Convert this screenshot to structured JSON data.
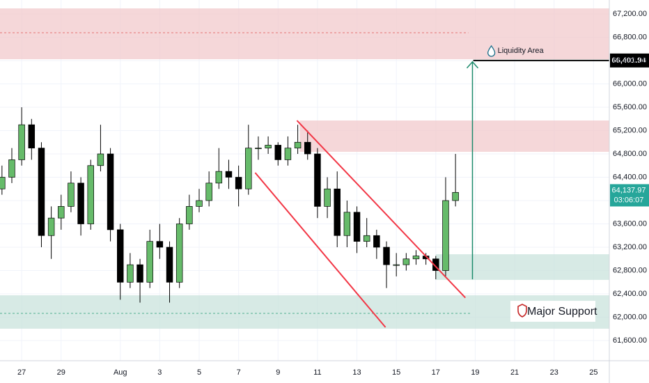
{
  "chart_data": {
    "type": "candlestick",
    "x": [
      26,
      26.5,
      27,
      27.5,
      28,
      28.5,
      29,
      29.5,
      30,
      30.5,
      31,
      31.5,
      32,
      32.5,
      33,
      33.5,
      34,
      34.5,
      35,
      35.5,
      36,
      36.5,
      37,
      37.5,
      38,
      38.5,
      39,
      39.5,
      40,
      40.5,
      41,
      41.5,
      42,
      42.5,
      43,
      43.5,
      44,
      44.5,
      45,
      45.5,
      46,
      46.5,
      47,
      47.5,
      48,
      48.5,
      49
    ],
    "open": [
      64200,
      64400,
      64700,
      65300,
      64900,
      63400,
      63700,
      63900,
      64300,
      63600,
      64600,
      64800,
      63500,
      62600,
      62900,
      62600,
      63300,
      63200,
      62600,
      63600,
      63900,
      64000,
      64300,
      64500,
      64400,
      64200,
      64900,
      64900,
      64950,
      64700,
      64900,
      65000,
      64800,
      63900,
      64200,
      63400,
      63800,
      63300,
      63400,
      63200,
      62900,
      62900,
      63000,
      63050,
      63000,
      62800,
      64000
    ],
    "high": [
      64600,
      64900,
      65600,
      65400,
      65000,
      63900,
      64100,
      64500,
      64400,
      64700,
      65300,
      64900,
      63600,
      63100,
      63000,
      63500,
      63600,
      63300,
      63700,
      64100,
      64200,
      64500,
      64900,
      64700,
      64600,
      65300,
      65100,
      65100,
      65000,
      65100,
      65300,
      65200,
      64900,
      64400,
      64500,
      64000,
      63900,
      63700,
      63500,
      63300,
      63100,
      63100,
      63150,
      63100,
      63050,
      64400,
      64800
    ],
    "low": [
      64100,
      64300,
      64600,
      64700,
      63200,
      63000,
      63500,
      63800,
      63400,
      63500,
      64500,
      63300,
      62300,
      62500,
      62250,
      62500,
      63000,
      62250,
      62500,
      63500,
      63800,
      63900,
      64200,
      64200,
      63900,
      64100,
      64700,
      64800,
      64600,
      64600,
      64800,
      64700,
      63700,
      63700,
      63200,
      63200,
      63100,
      63200,
      63000,
      62500,
      62700,
      62800,
      62900,
      62900,
      62650,
      62700,
      63900
    ],
    "close": [
      64400,
      64700,
      65300,
      64900,
      63400,
      63700,
      63900,
      64300,
      63600,
      64600,
      64800,
      63500,
      62600,
      62900,
      62600,
      63300,
      63200,
      62600,
      63600,
      63900,
      64000,
      64300,
      64500,
      64400,
      64200,
      64900,
      64900,
      64950,
      64700,
      64900,
      65000,
      64800,
      63900,
      64200,
      63400,
      63800,
      63300,
      63400,
      63200,
      62900,
      62900,
      63000,
      63050,
      63000,
      62800,
      64000,
      64140
    ],
    "up_color": "#66bb6a",
    "down_color": "#000000",
    "xlim": [
      25.9,
      56.8
    ],
    "xticks": [
      27,
      29,
      {
        "value": 32,
        "label": "Aug"
      },
      {
        "value": 34,
        "label": "3"
      },
      {
        "value": 36,
        "label": "5"
      },
      {
        "value": 38,
        "label": "7"
      },
      {
        "value": 40,
        "label": "9"
      },
      {
        "value": 42,
        "label": "11"
      },
      {
        "value": 44,
        "label": "13"
      },
      {
        "value": 46,
        "label": "15"
      },
      {
        "value": 48,
        "label": "17"
      },
      {
        "value": 50,
        "label": "19"
      },
      {
        "value": 52,
        "label": "21"
      },
      {
        "value": 54,
        "label": "23"
      },
      {
        "value": 56,
        "label": "25"
      }
    ],
    "ylim": [
      61254,
      67439
    ],
    "yticks": [
      {
        "value": 61600,
        "label": "61,600.00"
      },
      {
        "value": 62000,
        "label": "62,000.00"
      },
      {
        "value": 62400,
        "label": "62,400.00"
      },
      {
        "value": 62800,
        "label": "62,800.00"
      },
      {
        "value": 63200,
        "label": "63,200.00"
      },
      {
        "value": 63600,
        "label": "63,600.00"
      },
      {
        "value": 64000,
        "label": "64,000.00"
      },
      {
        "value": 64400,
        "label": "64,400.00"
      },
      {
        "value": 64800,
        "label": "64,800.00"
      },
      {
        "value": 65200,
        "label": "65,200.00"
      },
      {
        "value": 65600,
        "label": "65,600.00"
      },
      {
        "value": 66000,
        "label": "66,000.00"
      },
      {
        "value": 66400,
        "label": "66,400.00"
      },
      {
        "value": 66800,
        "label": "66,800.00"
      },
      {
        "value": 67200,
        "label": "67,200.00"
      }
    ],
    "grid": true,
    "zones": [
      {
        "from": 66424,
        "to": 67295,
        "x_start": 25.9,
        "color": "#f2c9cc"
      },
      {
        "from": 64836,
        "to": 65373,
        "x_start": 41.1,
        "color": "#f2c9cc"
      },
      {
        "from": 62640,
        "to": 63080,
        "x_start": 48.0,
        "color": "#c9e3dc"
      },
      {
        "from": 61803,
        "to": 62376,
        "x_start": 25.9,
        "color": "#c9e3dc"
      }
    ],
    "dashed_levels": [
      {
        "value": 66878,
        "x_end": 49.65,
        "color": "#e57373"
      },
      {
        "value": 62066,
        "x_end": 49.8,
        "color": "#4caf90"
      }
    ],
    "trendlines": [
      {
        "x": [
          40.96,
          49.5
        ],
        "y": [
          65373,
          62334
        ],
        "color": "#f23645"
      },
      {
        "x": [
          38.84,
          45.45
        ],
        "y": [
          64478,
          61827
        ],
        "color": "#f23645"
      }
    ],
    "arrow": {
      "x": 49.86,
      "from": 62650,
      "to": 66380,
      "color": "#1b8a6b"
    },
    "target": {
      "value": 66401.94,
      "label": "66,401.94",
      "x_start": 49.9,
      "text": "Liquidity Area"
    },
    "last_price": {
      "value": 64137.97,
      "label": "64,137.97",
      "countdown": "03:06:07",
      "color": "#26a69a"
    },
    "support_label": "Major Support"
  }
}
